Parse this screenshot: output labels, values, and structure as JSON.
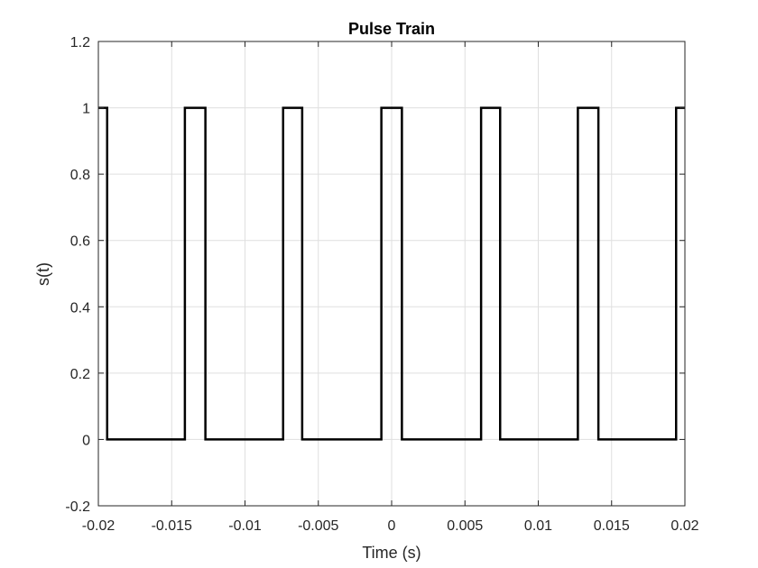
{
  "chart_data": {
    "type": "line",
    "title": "Pulse Train",
    "xlabel": "Time (s)",
    "ylabel": "s(t)",
    "xlim": [
      -0.02,
      0.02
    ],
    "ylim": [
      -0.2,
      1.2
    ],
    "grid": true,
    "legend": "none",
    "x_ticks": [
      -0.02,
      -0.015,
      -0.01,
      -0.005,
      0,
      0.005,
      0.01,
      0.015,
      0.02
    ],
    "x_tick_labels": [
      "-0.02",
      "-0.015",
      "-0.01",
      "-0.005",
      "0",
      "0.005",
      "0.01",
      "0.015",
      "0.02"
    ],
    "y_ticks": [
      -0.2,
      0,
      0.2,
      0.4,
      0.6,
      0.8,
      1,
      1.2
    ],
    "y_tick_labels": [
      "-0.2",
      "0",
      "0.2",
      "0.4",
      "0.6",
      "0.8",
      "1",
      "1.2"
    ],
    "series": [
      {
        "color": "#000000",
        "x": [
          -0.02,
          -0.0194,
          -0.0194,
          -0.0141,
          -0.0141,
          -0.0127,
          -0.0127,
          -0.0074,
          -0.0074,
          -0.0061,
          -0.0061,
          -0.0007,
          -0.0007,
          0.0007,
          0.0007,
          0.0061,
          0.0061,
          0.0074,
          0.0074,
          0.0127,
          0.0127,
          0.0141,
          0.0141,
          0.0194,
          0.0194,
          0.02
        ],
        "y": [
          1,
          1,
          0,
          0,
          1,
          1,
          0,
          0,
          1,
          1,
          0,
          0,
          1,
          1,
          0,
          0,
          1,
          1,
          0,
          0,
          1,
          1,
          0,
          0,
          1,
          1
        ]
      }
    ]
  }
}
